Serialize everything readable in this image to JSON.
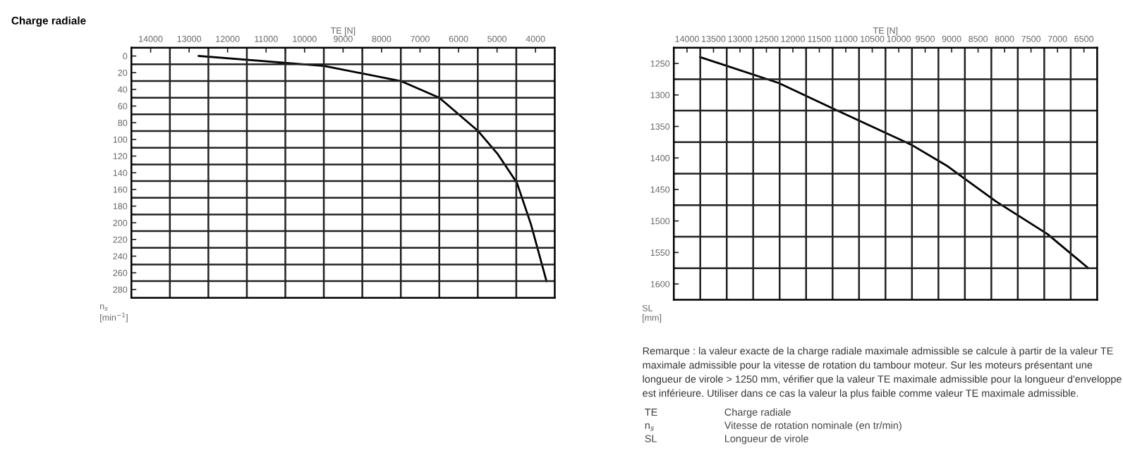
{
  "chart_data": [
    {
      "type": "line",
      "title": "Charge radiale",
      "xlabel": "TE [N]",
      "ylabel": "n$_{s}$\n[min$^{−1}$]",
      "x": [
        12750,
        9490,
        7500,
        6500,
        5490,
        4975,
        4484,
        4117,
        3715
      ],
      "series": [
        {
          "color": "#000000",
          "values": [
            0,
            12,
            30,
            50,
            90,
            118,
            152,
            202,
            270
          ]
        }
      ],
      "xlim": [
        14500,
        3500
      ],
      "xticks": [
        14000,
        {
          "value": 13500,
          "label": null
        },
        13000,
        {
          "value": 12500,
          "label": null
        },
        12000,
        {
          "value": 11500,
          "label": null
        },
        11000,
        {
          "value": 10500,
          "label": null
        },
        10000,
        {
          "value": 9500,
          "label": null
        },
        9000,
        {
          "value": 8500,
          "label": null
        },
        8000,
        {
          "value": 7500,
          "label": null
        },
        7000,
        {
          "value": 6500,
          "label": null
        },
        6000,
        {
          "value": 5500,
          "label": null
        },
        5000,
        {
          "value": 4500,
          "label": null
        },
        4000
      ],
      "ylim": [
        290,
        -10
      ],
      "yticks": [
        0,
        {
          "value": 10,
          "label": null
        },
        20,
        {
          "value": 30,
          "label": null
        },
        40,
        {
          "value": 50,
          "label": null
        },
        60,
        {
          "value": 70,
          "label": null
        },
        80,
        {
          "value": 90,
          "label": null
        },
        100,
        {
          "value": 110,
          "label": null
        },
        120,
        {
          "value": 130,
          "label": null
        },
        140,
        {
          "value": 150,
          "label": null
        },
        160,
        {
          "value": 170,
          "label": null
        },
        180,
        {
          "value": 190,
          "label": null
        },
        200,
        {
          "value": 210,
          "label": null
        },
        220,
        {
          "value": 230,
          "label": null
        },
        240,
        {
          "value": 250,
          "label": null
        },
        260,
        {
          "value": 270,
          "label": null
        },
        280
      ],
      "grid": true,
      "legend": false,
      "marker": "none",
      "line_style": "solid"
    },
    {
      "type": "line",
      "xlabel": "TE [N]",
      "ylabel": "SL\n[mm]",
      "x": [
        13750,
        12270,
        11230,
        9763,
        9097,
        8163,
        7187,
        6430
      ],
      "series": [
        {
          "color": "#000000",
          "values": [
            1240,
            1281,
            1322,
            1379,
            1412,
            1469,
            1521,
            1574
          ]
        }
      ],
      "xlim": [
        14250,
        6250
      ],
      "xticks": [
        14000,
        {
          "value": 13750,
          "label": null
        },
        13500,
        {
          "value": 13250,
          "label": null
        },
        13000,
        {
          "value": 12750,
          "label": null
        },
        12500,
        {
          "value": 12250,
          "label": null
        },
        12000,
        {
          "value": 11750,
          "label": null
        },
        11500,
        {
          "value": 11250,
          "label": null
        },
        11000,
        {
          "value": 10750,
          "label": null
        },
        10500,
        {
          "value": 10250,
          "label": null
        },
        10000,
        {
          "value": 9750,
          "label": null
        },
        9500,
        {
          "value": 9250,
          "label": null
        },
        9000,
        {
          "value": 8750,
          "label": null
        },
        8500,
        {
          "value": 8250,
          "label": null
        },
        8000,
        {
          "value": 7750,
          "label": null
        },
        7500,
        {
          "value": 7250,
          "label": null
        },
        7000,
        {
          "value": 6750,
          "label": null
        },
        6500
      ],
      "ylim": [
        1625,
        1225
      ],
      "yticks": [
        1250,
        {
          "value": 1275,
          "label": null
        },
        1300,
        {
          "value": 1325,
          "label": null
        },
        1350,
        {
          "value": 1375,
          "label": null
        },
        1400,
        {
          "value": 1425,
          "label": null
        },
        1450,
        {
          "value": 1475,
          "label": null
        },
        1500,
        {
          "value": 1525,
          "label": null
        },
        1550,
        {
          "value": 1575,
          "label": null
        },
        1600
      ],
      "grid": true,
      "legend": false,
      "marker": "none",
      "line_style": "solid",
      "annotations": [
        "Remarque : la valeur exacte de la charge radiale maximale admissible se calcule à partir de la valeur TE maximale admissible pour la vitesse de rotation du tambour moteur. Sur les moteurs présentant une longueur de virole > 1250 mm, vérifier que la valeur TE maximale admissible pour la longueur d'enveloppe est inférieure. Utiliser dans ce cas la valeur la plus faible comme valeur TE maximale admissible.",
        "TE\tCharge radiale",
        "n$_{s}$\tVitesse de rotation nominale (en tr/min)",
        "SL\tLongueur de virole"
      ]
    }
  ]
}
